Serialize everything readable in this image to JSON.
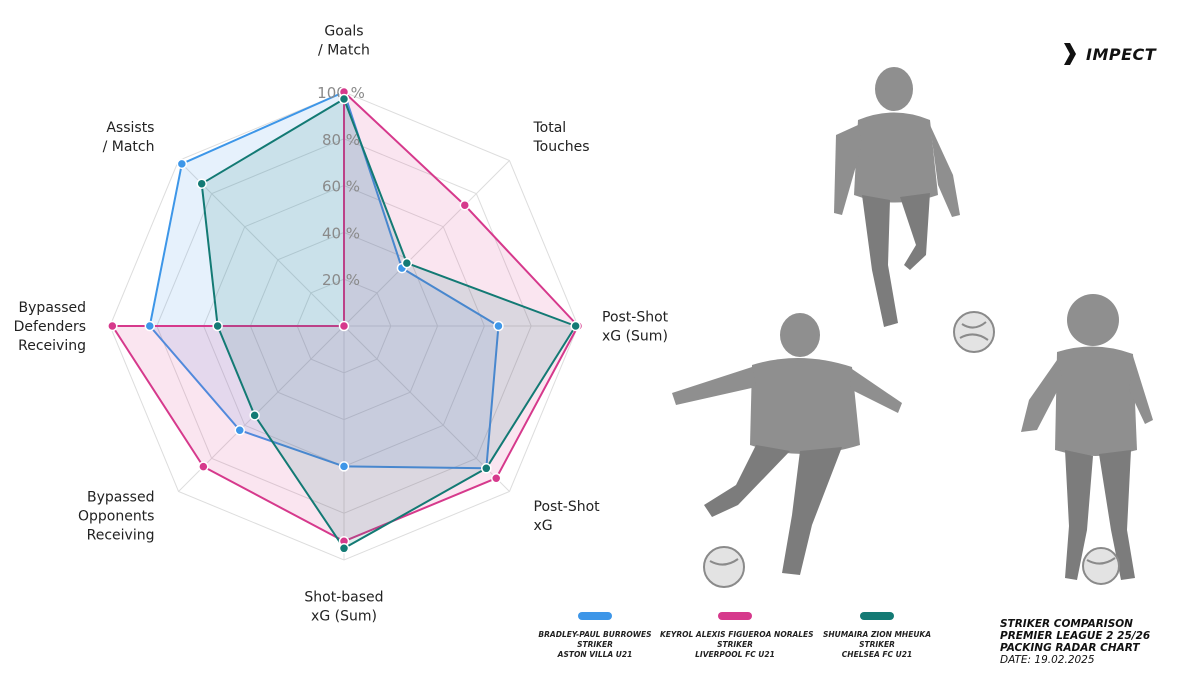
{
  "brand": {
    "name": "IMPECT",
    "logo_icon": "chevron-right-icon"
  },
  "chart_data": {
    "type": "radar",
    "title": "",
    "axes": [
      [
        "Goals",
        "/ Match"
      ],
      [
        "Total",
        "Touches"
      ],
      [
        "Post-Shot",
        "xG (Sum)"
      ],
      [
        "Post-Shot",
        "xG"
      ],
      [
        "Shot-based",
        "xG (Sum)"
      ],
      [
        "Bypassed",
        "Opponents",
        "Receiving"
      ],
      [
        "Bypassed",
        "Defenders",
        "Receiving"
      ],
      [
        "Assists",
        "/ Match"
      ]
    ],
    "ticks": [
      20,
      40,
      60,
      80,
      100
    ],
    "tick_labels": [
      "20 %",
      "40 %",
      "60 %",
      "80 %",
      "100 %"
    ],
    "range": [
      0,
      100
    ],
    "unit": "%",
    "grid": true,
    "series": [
      {
        "name": "BRADLEY-PAUL BURROWES",
        "color": "#3d96e8",
        "values": [
          100,
          35,
          66,
          86,
          60,
          63,
          83,
          98
        ]
      },
      {
        "name": "KEYROL ALEXIS FIGUEROA NORALES",
        "color": "#d6398c",
        "values": [
          100,
          73,
          100,
          92,
          92,
          85,
          99,
          0
        ]
      },
      {
        "name": "SHUMAIRA ZION MHEUKA",
        "color": "#137a74",
        "values": [
          97,
          38,
          99,
          86,
          95,
          54,
          54,
          86
        ]
      }
    ]
  },
  "legend": [
    {
      "name": "BRADLEY-PAUL BURROWES",
      "position": "STRIKER",
      "club": "ASTON VILLA U21",
      "color": "#3d96e8"
    },
    {
      "name": "KEYROL ALEXIS FIGUEROA NORALES",
      "position": "STRIKER",
      "club": "LIVERPOOL FC U21",
      "color": "#d6398c"
    },
    {
      "name": "SHUMAIRA ZION MHEUKA",
      "position": "STRIKER",
      "club": "CHELSEA FC U21",
      "color": "#137a74"
    }
  ],
  "info": {
    "line1": "STRIKER COMPARISON",
    "line2": "PREMIER LEAGUE 2 25/26",
    "line3": "PACKING RADAR CHART",
    "date": "DATE: 19.02.2025"
  },
  "photos": [
    {
      "description": "player photo aston villa striker",
      "color": "#9c9c9c"
    },
    {
      "description": "player photo liverpool striker",
      "color": "#9c9c9c"
    },
    {
      "description": "player photo chelsea striker",
      "color": "#9c9c9c"
    }
  ]
}
